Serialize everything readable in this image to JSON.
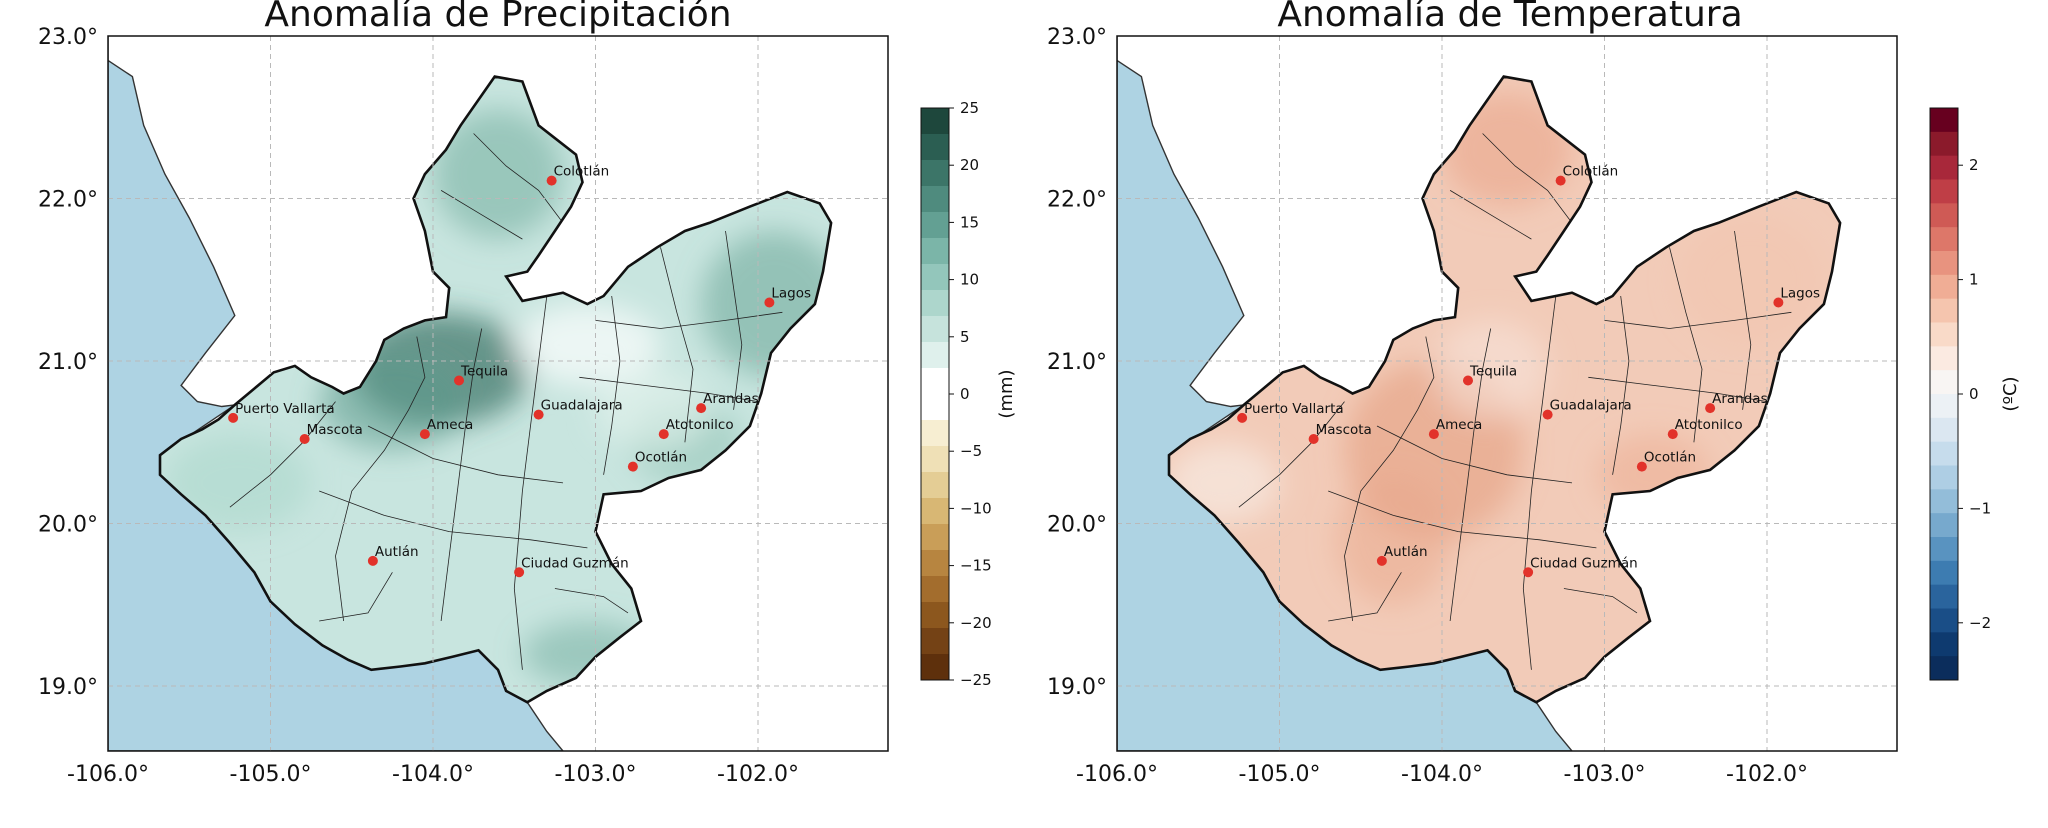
{
  "panels": [
    {
      "title": "Anomalía de Precipitación",
      "colorbar": {
        "label": "(mm)",
        "range": [
          -25,
          25
        ],
        "ticks": [
          25,
          20,
          15,
          10,
          5,
          0,
          -5,
          -10,
          -15,
          -20,
          -25
        ],
        "tick_labels": [
          "25",
          "20",
          "15",
          "10",
          "5",
          "0",
          "−5",
          "−10",
          "−15",
          "−20",
          "−25"
        ],
        "palette": [
          "#1e473c",
          "#2b5e52",
          "#3c7568",
          "#4f8b7e",
          "#63a093",
          "#7bb5a8",
          "#93c6bb",
          "#add6cc",
          "#c6e3dc",
          "#dff0ec",
          "#ffffff",
          "#ffffff",
          "#f7eed2",
          "#efe0b6",
          "#e4cd95",
          "#d8b774",
          "#c99e58",
          "#b78540",
          "#a36d2d",
          "#8c571e",
          "#744215",
          "#5e300c"
        ],
        "state_fill": "#c8e5df"
      }
    },
    {
      "title": "Anomalía de Temperatura",
      "colorbar": {
        "label": "(ºC)",
        "range": [
          -2.5,
          2.5
        ],
        "ticks": [
          2,
          1,
          0,
          -1,
          -2
        ],
        "tick_labels": [
          "2",
          "1",
          "0",
          "−1",
          "−2"
        ],
        "palette": [
          "#67001f",
          "#8b1a2b",
          "#a8283a",
          "#bf3e46",
          "#cf5a55",
          "#dd7769",
          "#e8937f",
          "#f0ad95",
          "#f5c5ae",
          "#f9dac8",
          "#fbeae1",
          "#f8f5f3",
          "#ecf1f5",
          "#dbe7f1",
          "#c6dcec",
          "#aecee4",
          "#93bdd9",
          "#77a9cd",
          "#5993c0",
          "#3d7cb1",
          "#2a649d",
          "#1a4e87",
          "#0e3a6f",
          "#0b2d5c"
        ],
        "state_fill": "#f2cbb8"
      }
    }
  ],
  "axes": {
    "lon_ticks": [
      -106.0,
      -105.0,
      -104.0,
      -103.0,
      -102.0
    ],
    "lon_labels": [
      "-106.0°",
      "-105.0°",
      "-104.0°",
      "-103.0°",
      "-102.0°"
    ],
    "lat_ticks": [
      23.0,
      22.0,
      21.0,
      20.0,
      19.0
    ],
    "lat_labels": [
      "23.0°",
      "22.0°",
      "21.0°",
      "20.0°",
      "19.0°"
    ],
    "lon_range": [
      -106.0,
      -101.2
    ],
    "lat_range": [
      18.6,
      23.0
    ]
  },
  "cities": [
    {
      "name": "Colotlán",
      "lon": -103.27,
      "lat": 22.11
    },
    {
      "name": "Lagos",
      "lon": -101.93,
      "lat": 21.36
    },
    {
      "name": "Tequila",
      "lon": -103.84,
      "lat": 20.88
    },
    {
      "name": "Puerto Vallarta",
      "lon": -105.23,
      "lat": 20.65
    },
    {
      "name": "Guadalajara",
      "lon": -103.35,
      "lat": 20.67
    },
    {
      "name": "Arandas",
      "lon": -102.35,
      "lat": 20.71
    },
    {
      "name": "Ameca",
      "lon": -104.05,
      "lat": 20.55
    },
    {
      "name": "Mascota",
      "lon": -104.79,
      "lat": 20.52
    },
    {
      "name": "Atotonilco",
      "lon": -102.58,
      "lat": 20.55
    },
    {
      "name": "Ocotlán",
      "lon": -102.77,
      "lat": 20.35
    },
    {
      "name": "Autlán",
      "lon": -104.37,
      "lat": 19.77
    },
    {
      "name": "Ciudad Guzmán",
      "lon": -103.47,
      "lat": 19.7
    }
  ],
  "colors": {
    "ocean": "#aed3e3",
    "land": "#ffffff",
    "grid": "#b9b9b9",
    "city_marker": "#e2322a",
    "border": "#111111"
  }
}
